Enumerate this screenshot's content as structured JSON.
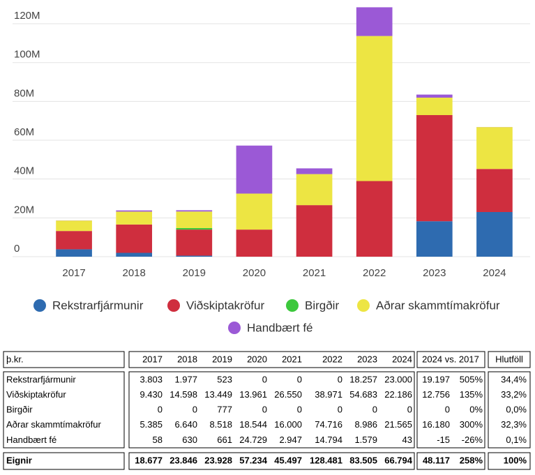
{
  "chart_data": {
    "type": "bar",
    "stacked": true,
    "grid": true,
    "legend": "bottom",
    "categories": [
      "2017",
      "2018",
      "2019",
      "2020",
      "2021",
      "2022",
      "2023",
      "2024"
    ],
    "series": [
      {
        "name": "Rekstrarfjármunir",
        "color": "#2e6bb0",
        "values": [
          3.803,
          1.977,
          0.523,
          0,
          0,
          0,
          18.257,
          23.0
        ]
      },
      {
        "name": "Viðskiptakröfur",
        "color": "#cf2e3e",
        "values": [
          9.43,
          14.598,
          13.449,
          13.961,
          26.55,
          38.971,
          54.683,
          22.186
        ]
      },
      {
        "name": "Birgðir",
        "color": "#3cc83c",
        "values": [
          0,
          0,
          0.777,
          0,
          0,
          0,
          0,
          0
        ]
      },
      {
        "name": "Aðrar skammtímakröfur",
        "color": "#ede543",
        "values": [
          5.385,
          6.64,
          8.518,
          18.544,
          16.0,
          74.716,
          8.986,
          21.565
        ]
      },
      {
        "name": "Handbært fé",
        "color": "#9b59d6",
        "values": [
          0.058,
          0.63,
          0.661,
          24.729,
          2.947,
          14.794,
          1.579,
          0.043
        ]
      }
    ],
    "ylim": [
      0,
      130
    ],
    "yticks": [
      {
        "value": 0,
        "label": "0"
      },
      {
        "value": 20,
        "label": "20M"
      },
      {
        "value": 40,
        "label": "40M"
      },
      {
        "value": 60,
        "label": "60M"
      },
      {
        "value": 80,
        "label": "80M"
      },
      {
        "value": 100,
        "label": "100M"
      },
      {
        "value": 120,
        "label": "120M"
      }
    ]
  },
  "table": {
    "header": [
      "þ.kr.",
      "2017",
      "2018",
      "2019",
      "2020",
      "2021",
      "2022",
      "2023",
      "2024",
      "2024 vs. 2017",
      "Hlutföll"
    ],
    "rows": [
      [
        "Rekstrarfjármunir",
        "3.803",
        "1.977",
        "523",
        "0",
        "0",
        "0",
        "18.257",
        "23.000",
        "19.197",
        "505%",
        "34,4%"
      ],
      [
        "Viðskiptakröfur",
        "9.430",
        "14.598",
        "13.449",
        "13.961",
        "26.550",
        "38.971",
        "54.683",
        "22.186",
        "12.756",
        "135%",
        "33,2%"
      ],
      [
        "Birgðir",
        "0",
        "0",
        "777",
        "0",
        "0",
        "0",
        "0",
        "0",
        "0",
        "0%",
        "0,0%"
      ],
      [
        "Aðrar skammtímakröfur",
        "5.385",
        "6.640",
        "8.518",
        "18.544",
        "16.000",
        "74.716",
        "8.986",
        "21.565",
        "16.180",
        "300%",
        "32,3%"
      ],
      [
        "Handbært fé",
        "58",
        "630",
        "661",
        "24.729",
        "2.947",
        "14.794",
        "1.579",
        "43",
        "-15",
        "-26%",
        "0,1%"
      ]
    ],
    "total": [
      "Eignir",
      "18.677",
      "23.846",
      "23.928",
      "57.234",
      "45.497",
      "128.481",
      "83.505",
      "66.794",
      "48.117",
      "258%",
      "100%"
    ]
  }
}
